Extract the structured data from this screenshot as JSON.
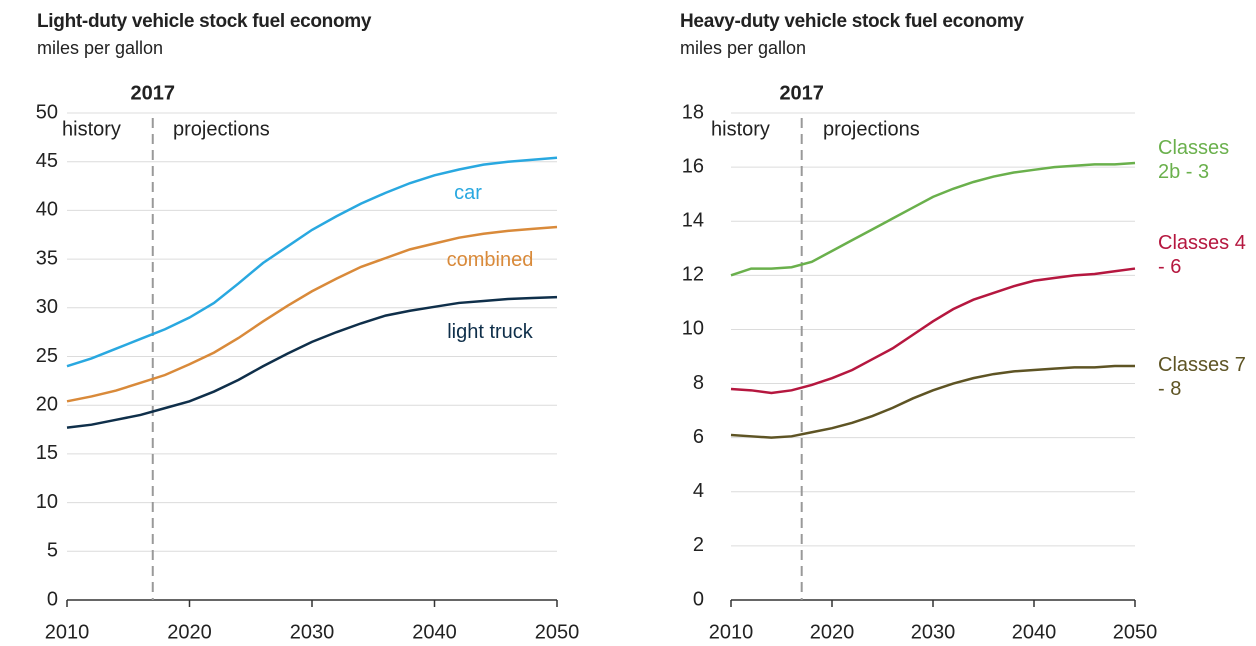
{
  "chart_data": [
    {
      "type": "line",
      "title": "Light-duty vehicle stock fuel economy",
      "subtitle": "miles per gallon",
      "x": [
        2010,
        2012,
        2014,
        2016,
        2018,
        2020,
        2022,
        2024,
        2026,
        2028,
        2030,
        2032,
        2034,
        2036,
        2038,
        2040,
        2042,
        2044,
        2046,
        2048,
        2050
      ],
      "series": [
        {
          "name": "car",
          "color": "#29a8e0",
          "values": [
            24,
            24.8,
            25.8,
            26.8,
            27.8,
            29,
            30.5,
            32.5,
            34.6,
            36.3,
            38,
            39.4,
            40.7,
            41.8,
            42.8,
            43.6,
            44.2,
            44.7,
            45,
            45.2,
            45.4
          ]
        },
        {
          "name": "combined",
          "color": "#d98a3a",
          "values": [
            20.4,
            20.9,
            21.5,
            22.3,
            23.1,
            24.2,
            25.4,
            26.9,
            28.6,
            30.2,
            31.7,
            33,
            34.2,
            35.1,
            36,
            36.6,
            37.2,
            37.6,
            37.9,
            38.1,
            38.3
          ]
        },
        {
          "name": "light truck",
          "color": "#0f2f4a",
          "values": [
            17.7,
            18,
            18.5,
            19,
            19.7,
            20.4,
            21.4,
            22.6,
            24,
            25.3,
            26.5,
            27.5,
            28.4,
            29.2,
            29.7,
            30.1,
            30.5,
            30.7,
            30.9,
            31,
            31.1
          ]
        }
      ],
      "xlim": [
        2010,
        2050
      ],
      "xticks": [
        2010,
        2020,
        2030,
        2040,
        2050
      ],
      "ylim": [
        0,
        50
      ],
      "yticks": [
        0,
        5,
        10,
        15,
        20,
        25,
        30,
        35,
        40,
        45,
        50
      ],
      "grid": true,
      "marker": 2017,
      "annotations": [
        "history",
        "projections"
      ]
    },
    {
      "type": "line",
      "title": "Heavy-duty vehicle stock fuel economy",
      "subtitle": "miles per gallon",
      "x": [
        2010,
        2012,
        2014,
        2016,
        2018,
        2020,
        2022,
        2024,
        2026,
        2028,
        2030,
        2032,
        2034,
        2036,
        2038,
        2040,
        2042,
        2044,
        2046,
        2048,
        2050
      ],
      "series": [
        {
          "name": "Classes 2b - 3",
          "color": "#6ab04c",
          "values": [
            12,
            12.25,
            12.25,
            12.3,
            12.5,
            12.9,
            13.3,
            13.7,
            14.1,
            14.5,
            14.9,
            15.2,
            15.45,
            15.65,
            15.8,
            15.9,
            16,
            16.05,
            16.1,
            16.1,
            16.15
          ]
        },
        {
          "name": "Classes 4 - 6",
          "color": "#b5173f",
          "values": [
            7.8,
            7.75,
            7.65,
            7.75,
            7.95,
            8.2,
            8.5,
            8.9,
            9.3,
            9.8,
            10.3,
            10.75,
            11.1,
            11.35,
            11.6,
            11.8,
            11.9,
            12,
            12.05,
            12.15,
            12.25
          ]
        },
        {
          "name": "Classes 7 - 8",
          "color": "#5e5424",
          "values": [
            6.1,
            6.05,
            6,
            6.05,
            6.2,
            6.35,
            6.55,
            6.8,
            7.1,
            7.45,
            7.75,
            8,
            8.2,
            8.35,
            8.45,
            8.5,
            8.55,
            8.6,
            8.6,
            8.65,
            8.65
          ]
        }
      ],
      "xlim": [
        2010,
        2050
      ],
      "xticks": [
        2010,
        2020,
        2030,
        2040,
        2050
      ],
      "ylim": [
        0,
        18
      ],
      "yticks": [
        0,
        2,
        4,
        6,
        8,
        10,
        12,
        14,
        16,
        18
      ],
      "grid": true,
      "marker": 2017,
      "annotations": [
        "history",
        "projections"
      ]
    }
  ]
}
